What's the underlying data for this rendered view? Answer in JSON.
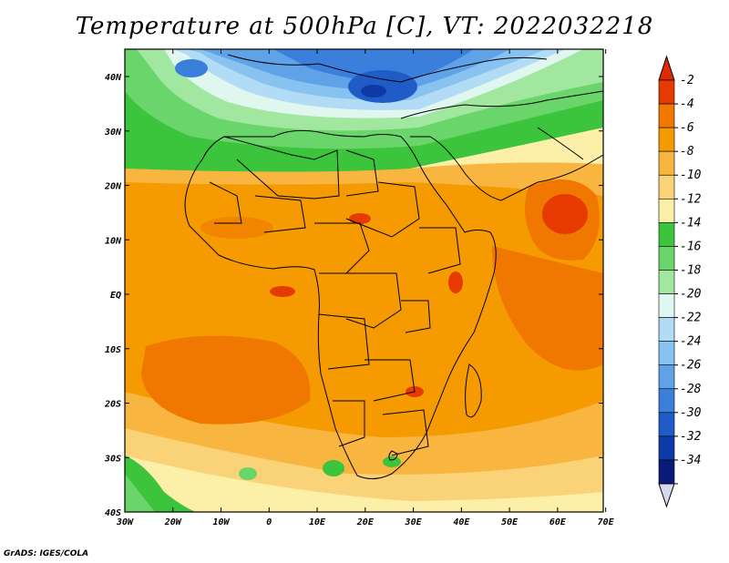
{
  "title": "Temperature at 500hPa [C], VT: 2022032218",
  "credit": "GrADS: IGES/COLA",
  "map": {
    "lon_ticks": [
      "30W",
      "20W",
      "10W",
      "0",
      "10E",
      "20E",
      "30E",
      "40E",
      "50E",
      "60E",
      "70E"
    ],
    "lat_ticks": [
      "40N",
      "30N",
      "20N",
      "10N",
      "EQ",
      "10S",
      "20S",
      "30S",
      "40S"
    ]
  },
  "colorbar": {
    "labels": [
      "-2",
      "-4",
      "-6",
      "-8",
      "-10",
      "-12",
      "-14",
      "-16",
      "-18",
      "-20",
      "-22",
      "-24",
      "-26",
      "-28",
      "-30",
      "-32",
      "-34"
    ],
    "colors": [
      "#e63a00",
      "#f07800",
      "#f59a00",
      "#f8b640",
      "#fad278",
      "#fcefa8",
      "#3cc43c",
      "#6ad56a",
      "#a2e7a0",
      "#e0f7f0",
      "#b2dbf5",
      "#88c2f0",
      "#5fa2e8",
      "#3b7fdc",
      "#1f5cc8",
      "#0e3aa8",
      "#0a1a78"
    ],
    "top_arrow_color": "#e02a00",
    "bottom_arrow_color": "#d8d8f0"
  }
}
